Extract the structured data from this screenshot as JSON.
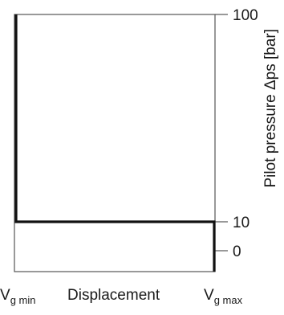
{
  "chart_data": {
    "type": "line",
    "title": "",
    "xlabel": "Displacement",
    "ylabel": "Pilot pressure Δps [bar]",
    "x_ticks": [
      {
        "main": "V",
        "sub": "g min"
      },
      {
        "main": "V",
        "sub": "g max"
      }
    ],
    "y_ticks": [
      "100",
      "10",
      "0"
    ],
    "y_tick_values": [
      100,
      10,
      0
    ],
    "x_range": [
      "Vg min",
      "Vg max"
    ],
    "grid": false,
    "series": [
      {
        "points": [
          {
            "x": "Vg min",
            "y": 100
          },
          {
            "x": "Vg min",
            "y": 10
          },
          {
            "x": "Vg max",
            "y": 10
          },
          {
            "x": "Vg max",
            "y": 0
          }
        ]
      }
    ],
    "colors": {
      "frame": "#555555",
      "curve": "#111111",
      "text": "#1a1a1a"
    }
  }
}
